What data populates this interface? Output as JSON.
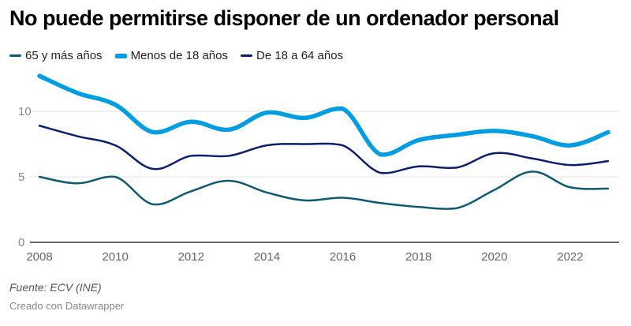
{
  "chart_data": {
    "type": "line",
    "title": "No puede permitirse disponer de un ordenador personal",
    "xlabel": "",
    "ylabel": "",
    "x": [
      2008,
      2009,
      2010,
      2011,
      2012,
      2013,
      2014,
      2015,
      2016,
      2017,
      2018,
      2019,
      2020,
      2021,
      2022,
      2023
    ],
    "x_ticks": [
      "2008",
      "2010",
      "2012",
      "2014",
      "2016",
      "2018",
      "2020",
      "2022"
    ],
    "y_ticks": [
      "0",
      "5",
      "10"
    ],
    "ylim": [
      0,
      12.7
    ],
    "xlim": [
      2008,
      2023
    ],
    "grid": true,
    "legend_position": "top-left",
    "series": [
      {
        "name": "65 y más años",
        "color": "#0f5a73",
        "values": [
          5.0,
          4.5,
          5.0,
          2.9,
          3.9,
          4.7,
          3.8,
          3.2,
          3.4,
          3.0,
          2.7,
          2.6,
          4.0,
          5.4,
          4.2,
          4.1
        ]
      },
      {
        "name": "Menos de 18 años",
        "color": "#009ee0",
        "values": [
          12.7,
          11.4,
          10.5,
          8.4,
          9.2,
          8.6,
          9.9,
          9.5,
          10.2,
          6.7,
          7.8,
          8.2,
          8.5,
          8.1,
          7.4,
          8.4
        ]
      },
      {
        "name": "De 18 a 64 años",
        "color": "#0b1f6e",
        "values": [
          8.9,
          8.1,
          7.4,
          5.6,
          6.6,
          6.6,
          7.4,
          7.5,
          7.4,
          5.3,
          5.8,
          5.7,
          6.8,
          6.4,
          5.9,
          6.2
        ]
      }
    ]
  },
  "legend": [
    {
      "label": "65 y más años",
      "color": "#0f5a73"
    },
    {
      "label": "Menos de 18 años",
      "color": "#009ee0"
    },
    {
      "label": "De 18 a 64 años",
      "color": "#0b1f6e"
    }
  ],
  "footer": {
    "source": "Fuente: ECV (INE)",
    "credit": "Creado con Datawrapper"
  }
}
